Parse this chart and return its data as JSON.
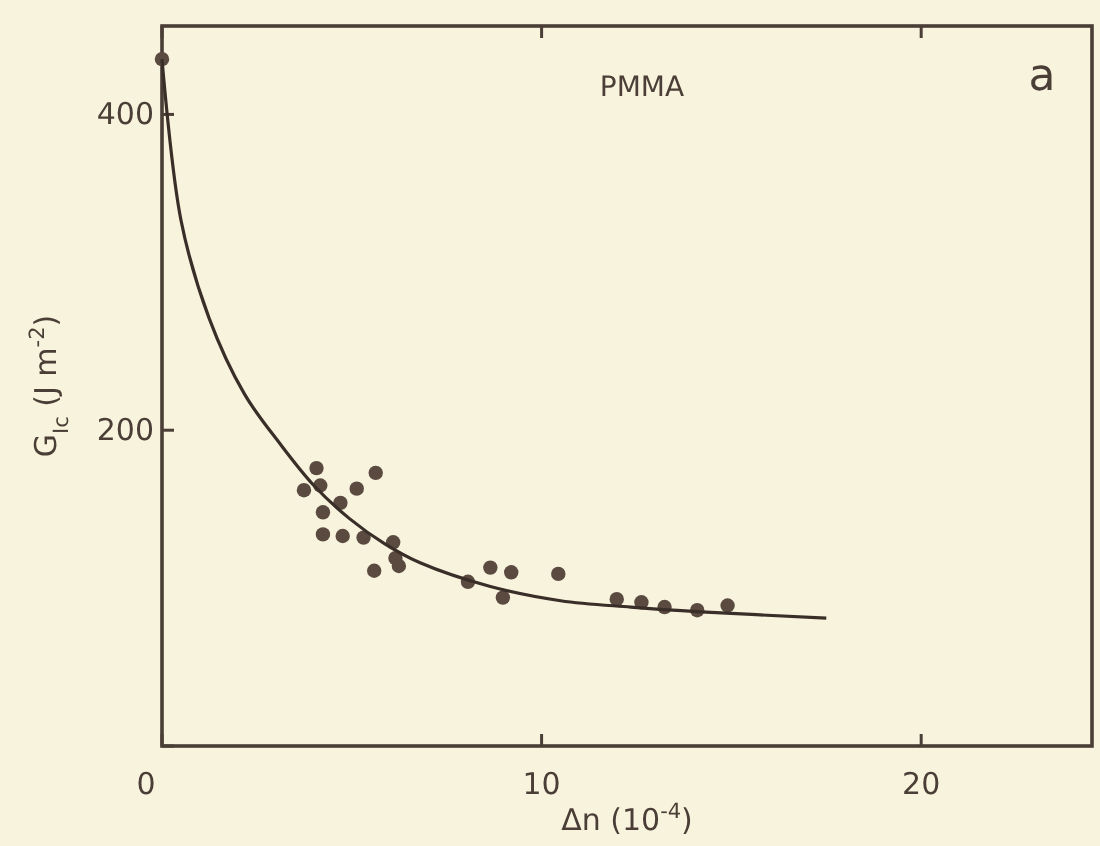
{
  "chart_data": {
    "type": "scatter",
    "xlabel": "Δn (10$^{-4}$)",
    "ylabel": "G$_{Ic}$ (J m$^{-2}$)",
    "annotations": [
      "PMMA",
      "a"
    ],
    "xlim": [
      0,
      24.5
    ],
    "ylim": [
      0,
      456
    ],
    "xticks": [
      0,
      10,
      20
    ],
    "yticks": [
      {
        "value": 0,
        "label": null
      },
      200,
      400
    ],
    "grid": false,
    "marker": "circle",
    "series": [
      {
        "color": "#5a4a40",
        "x": [
          0,
          4.07,
          3.74,
          4.17,
          4.24,
          4.7,
          5.13,
          5.63,
          4.24,
          4.76,
          5.31,
          6.09,
          6.15,
          5.59,
          6.24,
          8.06,
          8.65,
          9.2,
          8.98,
          10.44,
          11.98,
          12.63,
          13.24,
          14.1,
          14.9
        ],
        "values": [
          435,
          176,
          162,
          165,
          148,
          154,
          163,
          173,
          134,
          133,
          132,
          129,
          119,
          111,
          114,
          104,
          113,
          110,
          94,
          109,
          93,
          91,
          88,
          86,
          89
        ]
      },
      {
        "type": "line",
        "color": "#3a2e28",
        "marker": "none",
        "x": [
          0,
          0.5,
          1.24,
          2.17,
          3.09,
          4.0,
          4.94,
          5.87,
          6.8,
          8.65,
          10.5,
          12.35,
          14.2,
          17.5
        ],
        "values": [
          435,
          333,
          271,
          223,
          192,
          165,
          144,
          128,
          116,
          101,
          92,
          88,
          85,
          81
        ]
      }
    ]
  }
}
